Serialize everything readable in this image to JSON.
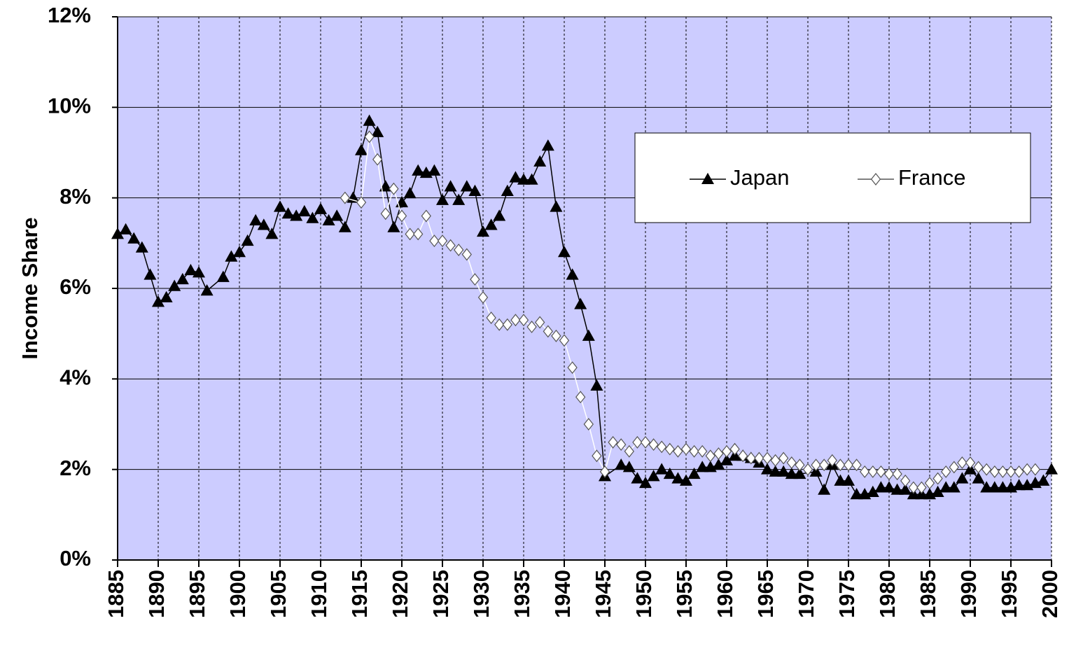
{
  "chart_data": {
    "type": "line",
    "y_label": "Income Share",
    "xlim": [
      1885,
      2000
    ],
    "xticks": [
      1885,
      1890,
      1895,
      1900,
      1905,
      1910,
      1915,
      1920,
      1925,
      1930,
      1935,
      1940,
      1945,
      1950,
      1955,
      1960,
      1965,
      1970,
      1975,
      1980,
      1985,
      1990,
      1995,
      2000
    ],
    "ylim": [
      0,
      12
    ],
    "yticks": [
      {
        "value": 0,
        "label": "0%"
      },
      {
        "value": 2,
        "label": "2%"
      },
      {
        "value": 4,
        "label": "4%"
      },
      {
        "value": 6,
        "label": "6%"
      },
      {
        "value": 8,
        "label": "8%"
      },
      {
        "value": 10,
        "label": "10%"
      },
      {
        "value": 12,
        "label": "12%"
      }
    ],
    "grid": true,
    "legend": "upper right",
    "background": "#ccccff",
    "series": [
      {
        "name": "Japan",
        "color": "#000000",
        "marker": "triangle",
        "marker_fill": "#000000",
        "x": [
          1885,
          1886,
          1887,
          1888,
          1889,
          1890,
          1891,
          1892,
          1893,
          1894,
          1895,
          1896,
          1898,
          1899,
          1900,
          1901,
          1902,
          1903,
          1904,
          1905,
          1906,
          1907,
          1908,
          1909,
          1910,
          1911,
          1912,
          1913,
          1914,
          1915,
          1916,
          1917,
          1918,
          1919,
          1920,
          1921,
          1922,
          1923,
          1924,
          1925,
          1926,
          1927,
          1928,
          1929,
          1930,
          1931,
          1932,
          1933,
          1934,
          1935,
          1936,
          1937,
          1938,
          1939,
          1940,
          1941,
          1942,
          1943,
          1944,
          1945,
          1947,
          1948,
          1949,
          1950,
          1951,
          1952,
          1953,
          1954,
          1955,
          1956,
          1957,
          1958,
          1959,
          1960,
          1961,
          1962,
          1963,
          1964,
          1965,
          1966,
          1967,
          1968,
          1969,
          1971,
          1972,
          1973,
          1974,
          1975,
          1976,
          1977,
          1978,
          1979,
          1980,
          1981,
          1982,
          1983,
          1984,
          1985,
          1986,
          1987,
          1988,
          1989,
          1990,
          1991,
          1992,
          1993,
          1994,
          1995,
          1996,
          1997,
          1998,
          1999,
          2000
        ],
        "values": [
          7.2,
          7.3,
          7.1,
          6.9,
          6.3,
          5.7,
          5.8,
          6.05,
          6.2,
          6.4,
          6.35,
          5.95,
          6.25,
          6.7,
          6.8,
          7.05,
          7.5,
          7.4,
          7.2,
          7.8,
          7.65,
          7.6,
          7.7,
          7.55,
          7.75,
          7.5,
          7.6,
          7.35,
          8.0,
          9.05,
          9.7,
          9.45,
          8.25,
          7.35,
          7.9,
          8.1,
          8.6,
          8.55,
          8.6,
          7.95,
          8.25,
          7.95,
          8.25,
          8.15,
          7.25,
          7.4,
          7.6,
          8.15,
          8.45,
          8.4,
          8.4,
          8.8,
          9.15,
          7.8,
          6.8,
          6.3,
          5.65,
          4.95,
          3.85,
          1.85,
          2.1,
          2.05,
          1.8,
          1.7,
          1.85,
          2.0,
          1.9,
          1.8,
          1.75,
          1.9,
          2.05,
          2.05,
          2.1,
          2.2,
          2.3,
          2.3,
          2.25,
          2.15,
          2.0,
          1.95,
          1.95,
          1.9,
          1.9,
          1.95,
          1.55,
          2.1,
          1.75,
          1.75,
          1.45,
          1.45,
          1.5,
          1.6,
          1.6,
          1.55,
          1.55,
          1.45,
          1.45,
          1.45,
          1.5,
          1.6,
          1.6,
          1.8,
          2.0,
          1.8,
          1.6,
          1.6,
          1.6,
          1.6,
          1.65,
          1.65,
          1.7,
          1.75,
          2.0
        ]
      },
      {
        "name": "France",
        "color": "#ffffff",
        "marker": "diamond",
        "marker_fill": "#ffffff",
        "x": [
          1913,
          1915,
          1916,
          1917,
          1918,
          1919,
          1920,
          1921,
          1922,
          1923,
          1924,
          1925,
          1926,
          1927,
          1928,
          1929,
          1930,
          1931,
          1932,
          1933,
          1934,
          1935,
          1936,
          1937,
          1938,
          1939,
          1940,
          1941,
          1942,
          1943,
          1944,
          1945,
          1946,
          1947,
          1948,
          1949,
          1950,
          1951,
          1952,
          1953,
          1954,
          1955,
          1956,
          1957,
          1958,
          1959,
          1960,
          1961,
          1962,
          1963,
          1964,
          1965,
          1966,
          1967,
          1968,
          1969,
          1970,
          1971,
          1972,
          1973,
          1974,
          1975,
          1976,
          1977,
          1978,
          1979,
          1980,
          1981,
          1982,
          1983,
          1984,
          1985,
          1986,
          1987,
          1988,
          1989,
          1990,
          1991,
          1992,
          1993,
          1994,
          1995,
          1996,
          1997,
          1998
        ],
        "values": [
          8.0,
          7.9,
          9.35,
          8.85,
          7.65,
          8.2,
          7.6,
          7.2,
          7.2,
          7.6,
          7.05,
          7.05,
          6.95,
          6.85,
          6.75,
          6.2,
          5.8,
          5.35,
          5.2,
          5.2,
          5.3,
          5.3,
          5.15,
          5.25,
          5.05,
          4.95,
          4.85,
          4.25,
          3.6,
          3.0,
          2.3,
          1.95,
          2.6,
          2.55,
          2.4,
          2.6,
          2.6,
          2.55,
          2.5,
          2.45,
          2.4,
          2.45,
          2.4,
          2.4,
          2.3,
          2.35,
          2.4,
          2.45,
          2.3,
          2.25,
          2.25,
          2.25,
          2.2,
          2.25,
          2.15,
          2.1,
          2.0,
          2.1,
          2.1,
          2.2,
          2.1,
          2.1,
          2.1,
          1.95,
          1.95,
          1.95,
          1.9,
          1.9,
          1.75,
          1.6,
          1.6,
          1.7,
          1.8,
          1.95,
          2.05,
          2.15,
          2.15,
          2.05,
          2.0,
          1.95,
          1.95,
          1.95,
          1.95,
          2.0,
          2.0
        ]
      }
    ]
  }
}
